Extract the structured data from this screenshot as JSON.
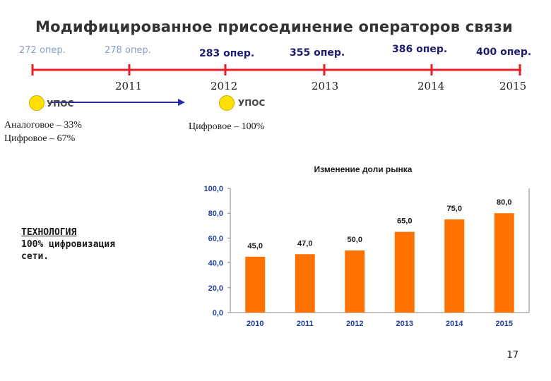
{
  "title": "Модифицированное присоединение операторов связи",
  "operators": [
    "272 опер.",
    "278 опер.",
    "283 опер.",
    "355 опер.",
    "386 опер.",
    "400 опер."
  ],
  "timeline_years": [
    "2011",
    "2012",
    "2013",
    "2014",
    "2015"
  ],
  "upos": [
    "УПОС",
    "УПОС"
  ],
  "left_note": [
    "Аналоговое – 33%",
    "Цифровое – 67%"
  ],
  "right_note": "Цифровое – 100%",
  "technology": [
    "ТЕХНОЛОГИЯ",
    "100% цифровизация",
    "сети."
  ],
  "page_number": "17",
  "colors": {
    "timeline": "#e8202a",
    "arrow": "#2a2aa8",
    "bar": "#ff7200",
    "axis_text": "#1f3f9f",
    "upos": "#ffe000"
  },
  "chart_data": {
    "type": "bar",
    "title": "Изменение доли рынка",
    "categories": [
      "2010",
      "2011",
      "2012",
      "2013",
      "2014",
      "2015"
    ],
    "values": [
      45.0,
      47.0,
      50.0,
      65.0,
      75.0,
      80.0
    ],
    "value_labels": [
      "45,0",
      "47,0",
      "50,0",
      "65,0",
      "75,0",
      "80,0"
    ],
    "ylim": [
      0,
      100
    ],
    "yticks": [
      "0,0",
      "20,0",
      "40,0",
      "60,0",
      "80,0",
      "100,0"
    ],
    "xlabel": "",
    "ylabel": "",
    "grid": false,
    "legend": "none"
  }
}
